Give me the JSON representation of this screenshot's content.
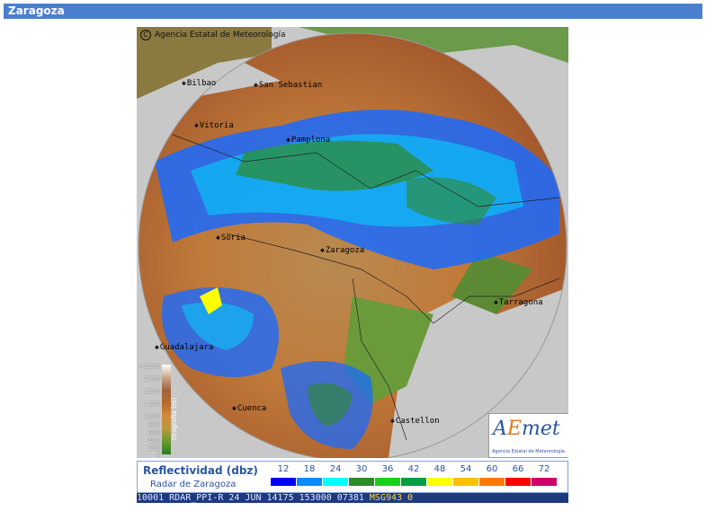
{
  "page": {
    "title": "Zaragoza"
  },
  "map": {
    "copyright": "Agencia Estatal de Meteorología",
    "cities": [
      "Vitoria",
      "Pamplona",
      "Zaragoza",
      "Tarragona",
      "Guadalajara",
      "Cuenca",
      "Castellon",
      "San Sebastian",
      "Bilbao",
      "Soria"
    ],
    "logo": {
      "brand_a": "A",
      "brand_e": "E",
      "brand_rest": "met",
      "subtitle": "Agencia Estatal de Meteorología"
    },
    "orography": {
      "title": "Orografía (m)",
      "levels": [
        ">2500",
        "2000",
        "1500",
        "1250",
        "1000",
        "800",
        "600",
        "400",
        "200",
        "0"
      ]
    }
  },
  "legend": {
    "title": "Reflectividad (dbz)",
    "subtitle": "Radar de Zaragoza",
    "bins": [
      {
        "value": "12",
        "color": "#0000ff"
      },
      {
        "value": "18",
        "color": "#0a8cff"
      },
      {
        "value": "24",
        "color": "#00ffff"
      },
      {
        "value": "30",
        "color": "#2f8a2a"
      },
      {
        "value": "36",
        "color": "#18d018"
      },
      {
        "value": "42",
        "color": "#00a040"
      },
      {
        "value": "48",
        "color": "#ffff00"
      },
      {
        "value": "54",
        "color": "#ffc000"
      },
      {
        "value": "60",
        "color": "#ff7a00"
      },
      {
        "value": "66",
        "color": "#ff0000"
      },
      {
        "value": "72",
        "color": "#d0006a"
      }
    ]
  },
  "status": {
    "prefix": "1",
    "text": "0001 RDAR_PPI-R   24 JUN 14175 153000 07381 ",
    "tail": "MSG943 0"
  }
}
